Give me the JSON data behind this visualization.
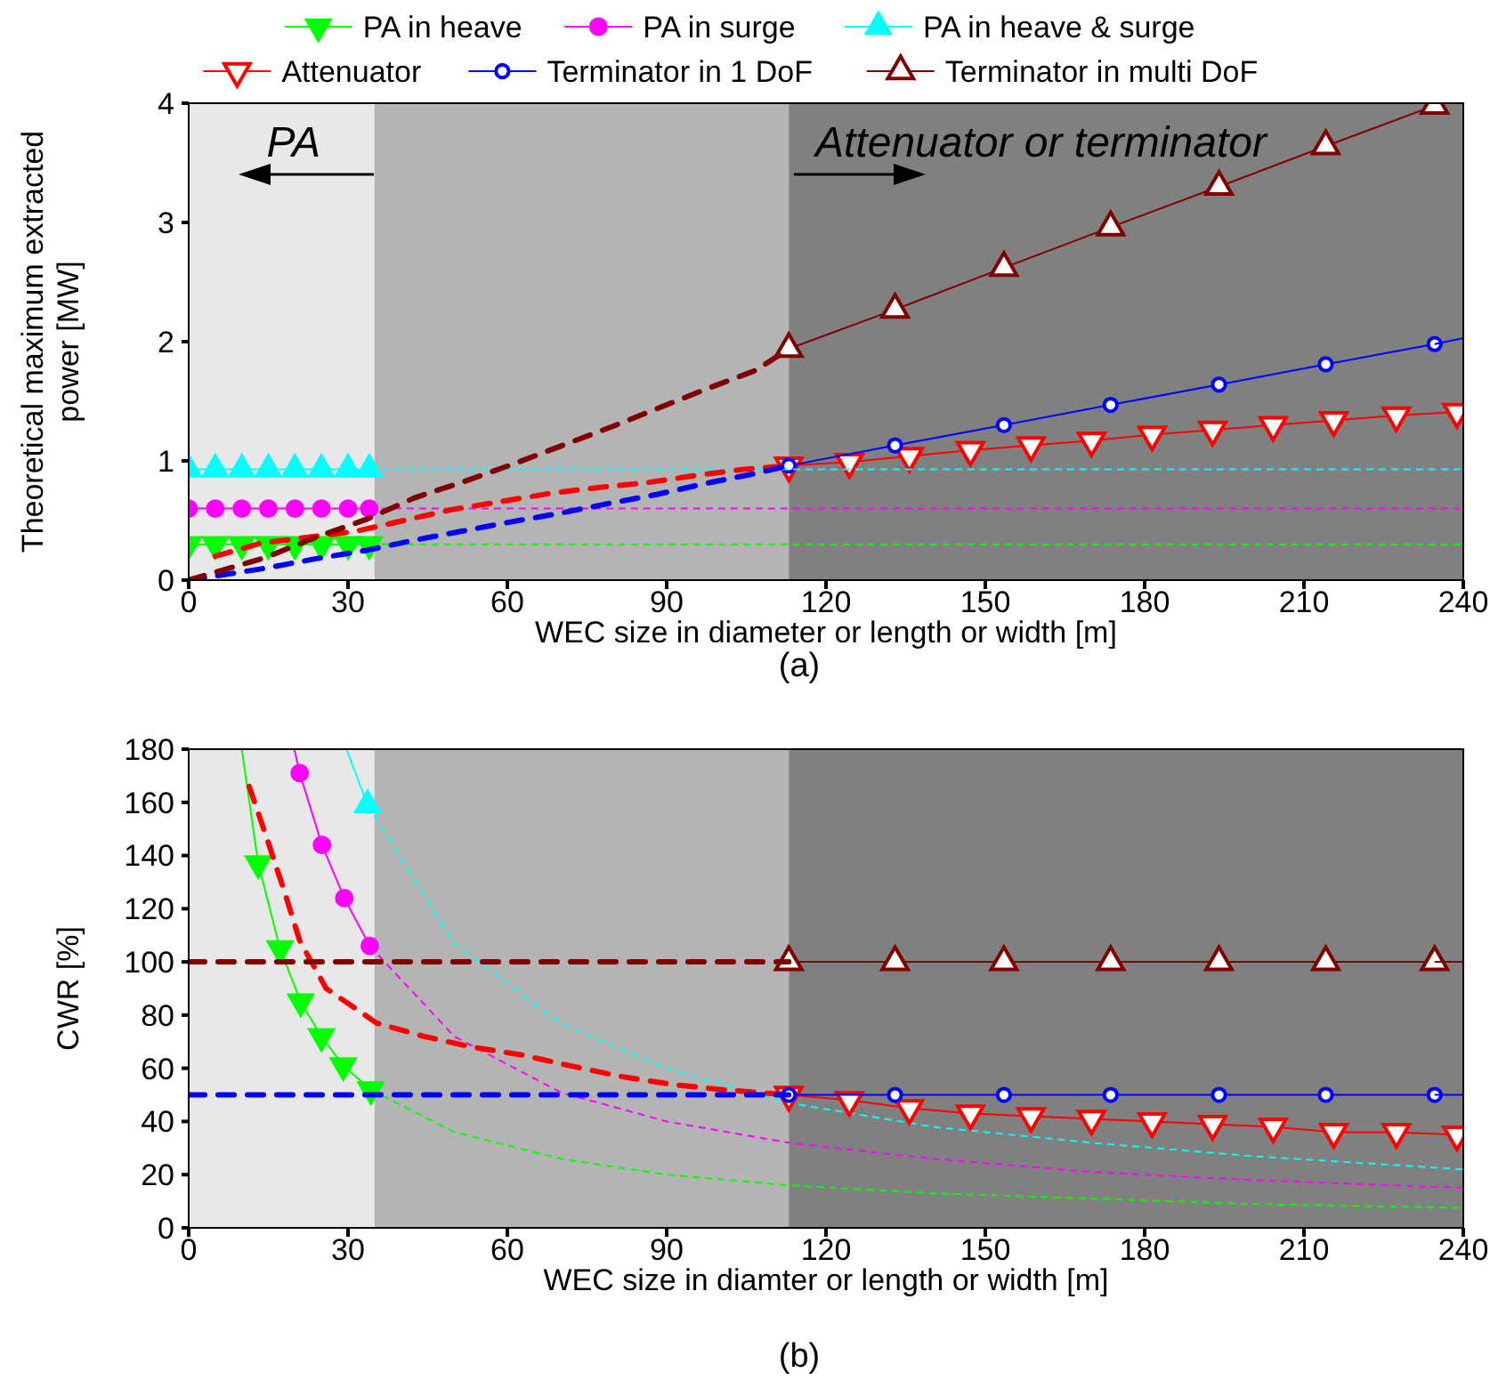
{
  "chart_data": [
    {
      "type": "line",
      "xlabel": "WEC size in diameter or length or width [m]",
      "ylabel": "Theoretical maximum extracted power [MW]",
      "xlim": [
        0,
        240
      ],
      "xticks": [
        0,
        30,
        60,
        90,
        120,
        150,
        180,
        210,
        240
      ],
      "ylim": [
        0,
        4
      ],
      "yticks": [
        0,
        1,
        2,
        3,
        4
      ],
      "legend": "top",
      "bands": [
        {
          "axis": "x",
          "from": 0,
          "to": 35,
          "color": "#e8e8e8"
        },
        {
          "axis": "x",
          "from": 35,
          "to": 113,
          "color": "#b4b4b4"
        },
        {
          "axis": "x",
          "from": 113,
          "to": 240,
          "color": "#808080"
        }
      ],
      "annotations": [
        "PA",
        "Attenuator or terminator",
        "(a)"
      ],
      "series": [
        {
          "name": "PA in heave",
          "color": "#00ff00",
          "marker": "triangle-down",
          "line_style": "solid",
          "x": [
            0,
            5,
            10,
            15,
            20,
            25,
            30,
            34
          ],
          "values": [
            0.3,
            0.3,
            0.3,
            0.3,
            0.3,
            0.3,
            0.3,
            0.3
          ]
        },
        {
          "name": "PA in surge",
          "color": "#ff00ff",
          "marker": "circle",
          "line_style": "solid",
          "x": [
            0,
            5,
            10,
            15,
            20,
            25,
            30,
            34
          ],
          "values": [
            0.6,
            0.6,
            0.6,
            0.6,
            0.6,
            0.6,
            0.6,
            0.6
          ]
        },
        {
          "name": "PA in heave & surge",
          "color": "#00ffff",
          "marker": "triangle",
          "line_style": "solid",
          "x": [
            0,
            5,
            10,
            15,
            20,
            25,
            30,
            34
          ],
          "values": [
            0.93,
            0.93,
            0.93,
            0.93,
            0.93,
            0.93,
            0.93,
            0.93
          ]
        },
        {
          "name": "Attenuator",
          "color": "#ff0000",
          "marker": "triangle-down-open",
          "line_style": "solid",
          "x": [
            113,
            124.4,
            135.7,
            147.2,
            158.6,
            170,
            181.4,
            192.8,
            204.2,
            215.6,
            227.4,
            238.8
          ],
          "values": [
            0.96,
            0.99,
            1.04,
            1.09,
            1.13,
            1.17,
            1.22,
            1.26,
            1.3,
            1.34,
            1.38,
            1.41
          ]
        },
        {
          "name": "Terminator in 1 DoF",
          "color": "#0000ff",
          "marker": "circle-open",
          "line_style": "solid",
          "x": [
            113,
            133,
            153.5,
            173.6,
            194,
            214.1,
            234.6
          ],
          "values": [
            0.96,
            1.13,
            1.3,
            1.47,
            1.64,
            1.81,
            1.98
          ]
        },
        {
          "name": "Terminator in multi DoF",
          "color": "#800000",
          "marker": "triangle-open",
          "line_style": "solid",
          "x": [
            113,
            133,
            153.5,
            173.6,
            194,
            214.1,
            234.6
          ],
          "values": [
            1.94,
            2.27,
            2.62,
            2.96,
            3.3,
            3.64,
            3.98
          ]
        },
        {
          "color": "#0000ff",
          "line_style": "solid",
          "x": [
            234.6,
            240
          ],
          "values": [
            1.98,
            2.03
          ]
        },
        {
          "color": "#00ff00",
          "line_style": "dotted",
          "x": [
            34,
            240
          ],
          "values": [
            0.3,
            0.3
          ]
        },
        {
          "color": "#ff00ff",
          "line_style": "dotted",
          "x": [
            34,
            240
          ],
          "values": [
            0.6,
            0.6
          ]
        },
        {
          "color": "#00ffff",
          "line_style": "dotted",
          "x": [
            34,
            240
          ],
          "values": [
            0.93,
            0.93
          ]
        },
        {
          "color": "#ff0000",
          "line_style": "dashed",
          "x": [
            5,
            13.6,
            31.5,
            40.5,
            49.4,
            58.9,
            68.4,
            77.9,
            86.8,
            95.8,
            104.7,
            113
          ],
          "values": [
            0.2,
            0.31,
            0.41,
            0.5,
            0.59,
            0.66,
            0.73,
            0.78,
            0.82,
            0.88,
            0.93,
            0.96
          ]
        },
        {
          "color": "#0000ff",
          "line_style": "dashed",
          "x": [
            0,
            14.5,
            24,
            33.5,
            41.9,
            51.4,
            60.9,
            69.8,
            78.8,
            88.3,
            97.3,
            106.2,
            113
          ],
          "values": [
            0,
            0.1,
            0.18,
            0.25,
            0.33,
            0.41,
            0.49,
            0.56,
            0.64,
            0.72,
            0.81,
            0.89,
            0.96
          ]
        },
        {
          "color": "#800000",
          "line_style": "dashed",
          "x": [
            0,
            14.5,
            24,
            33.5,
            42.5,
            51.4,
            60.9,
            70.4,
            79.3,
            88.3,
            97.3,
            106.8,
            113
          ],
          "values": [
            0,
            0.19,
            0.36,
            0.51,
            0.69,
            0.82,
            0.97,
            1.13,
            1.28,
            1.44,
            1.6,
            1.76,
            1.94
          ]
        }
      ]
    },
    {
      "type": "line",
      "xlabel": "WEC size in diamter or length or width [m]",
      "ylabel": "CWR [%]",
      "xlim": [
        0,
        240
      ],
      "xticks": [
        0,
        30,
        60,
        90,
        120,
        150,
        180,
        210,
        240
      ],
      "ylim": [
        0,
        180
      ],
      "yticks": [
        0,
        20,
        40,
        60,
        80,
        100,
        120,
        140,
        160,
        180
      ],
      "bands": [
        {
          "axis": "x",
          "from": 0,
          "to": 35,
          "color": "#e8e8e8"
        },
        {
          "axis": "x",
          "from": 35,
          "to": 113,
          "color": "#b4b4b4"
        },
        {
          "axis": "x",
          "from": 113,
          "to": 240,
          "color": "#808080"
        }
      ],
      "annotations": [
        "(b)"
      ],
      "series": [
        {
          "color": "#00ff00",
          "marker": "triangle-down",
          "line_style": "solid",
          "x": [
            13.1,
            17.2,
            21.1,
            25,
            29.1,
            34.3
          ],
          "values": [
            137,
            105,
            85,
            72,
            61,
            52
          ]
        },
        {
          "color": "#00ff00",
          "line_style": "solid",
          "x": [
            10,
            13.1
          ],
          "values": [
            180,
            137
          ]
        },
        {
          "color": "#ff00ff",
          "marker": "circle",
          "line_style": "solid",
          "x": [
            20.9,
            25.1,
            29.3,
            34.1
          ],
          "values": [
            171,
            144,
            124,
            106
          ]
        },
        {
          "color": "#ff00ff",
          "line_style": "solid",
          "x": [
            19.9,
            20.9
          ],
          "values": [
            180,
            171
          ]
        },
        {
          "color": "#00ffff",
          "marker": "triangle",
          "line_style": "solid",
          "x": [
            33.7
          ],
          "values": [
            159
          ]
        },
        {
          "color": "#00ffff",
          "line_style": "solid",
          "x": [
            29.7,
            33.7
          ],
          "values": [
            180,
            159
          ]
        },
        {
          "color": "#00ff00",
          "line_style": "dotted",
          "x": [
            34.3,
            50,
            70,
            90,
            113,
            140,
            170,
            200,
            240
          ],
          "values": [
            52,
            36,
            26,
            20,
            16,
            13,
            11,
            9,
            7.5
          ]
        },
        {
          "color": "#ff00ff",
          "line_style": "dotted",
          "x": [
            34.1,
            50,
            70,
            90,
            113,
            140,
            170,
            200,
            240
          ],
          "values": [
            106,
            72,
            51,
            40,
            32,
            26,
            21,
            18,
            15
          ]
        },
        {
          "color": "#00ffff",
          "line_style": "dotted",
          "x": [
            33.7,
            50,
            70,
            90,
            113,
            140,
            170,
            200,
            240
          ],
          "values": [
            159,
            107,
            77,
            60,
            47,
            38,
            32,
            27,
            22
          ]
        },
        {
          "color": "#ff0000",
          "marker": "triangle-down-open",
          "line_style": "solid",
          "x": [
            113,
            124.4,
            135.7,
            147.2,
            158.6,
            170,
            181.4,
            192.8,
            204.2,
            215.6,
            227.4,
            238.8
          ],
          "values": [
            50,
            48,
            45,
            43,
            42,
            41,
            40,
            39,
            38,
            36,
            36,
            35
          ]
        },
        {
          "color": "#0000ff",
          "marker": "circle-open",
          "line_style": "solid",
          "x": [
            113,
            133,
            153.5,
            173.6,
            194,
            214.1,
            234.6
          ],
          "values": [
            50,
            50,
            50,
            50,
            50,
            50,
            50
          ]
        },
        {
          "color": "#800000",
          "marker": "triangle-open",
          "line_style": "solid",
          "x": [
            113,
            133,
            153.5,
            173.6,
            194,
            214.1,
            234.6
          ],
          "values": [
            100,
            100,
            100,
            100,
            100,
            100,
            100
          ]
        },
        {
          "color": "#0000ff",
          "line_style": "solid",
          "x": [
            234.6,
            240
          ],
          "values": [
            50,
            50
          ]
        },
        {
          "color": "#800000",
          "line_style": "solid",
          "x": [
            234.6,
            240
          ],
          "values": [
            100,
            100
          ]
        },
        {
          "color": "#ff0000",
          "line_style": "dashed",
          "x": [
            11.4,
            14.8,
            18.1,
            20.9,
            25.9,
            35.4,
            44.3,
            53.3,
            62.8,
            71.7,
            81.2,
            90.7,
            100.2,
            113
          ],
          "values": [
            166,
            146,
            126,
            108,
            90,
            77,
            72,
            68,
            65,
            61,
            57,
            54,
            52,
            50
          ]
        },
        {
          "color": "#0000ff",
          "line_style": "dashed",
          "x": [
            0,
            113
          ],
          "values": [
            50,
            50
          ]
        },
        {
          "color": "#800000",
          "line_style": "dashed",
          "x": [
            0,
            113
          ],
          "values": [
            100,
            100
          ]
        }
      ]
    }
  ]
}
